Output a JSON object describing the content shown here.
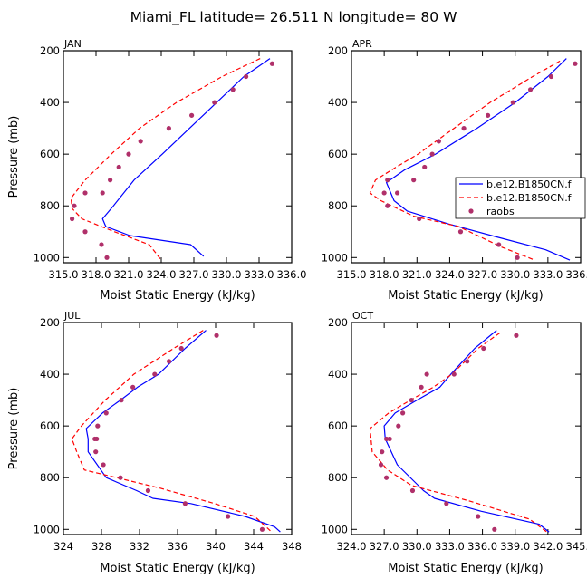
{
  "figure_title": "Miami_FL  latitude= 26.511 N longitude= 80 W",
  "chart_data": [
    {
      "type": "line",
      "title": "JAN",
      "xlabel": "Moist Static Energy (kJ/kg)",
      "ylabel": "Pressure (mb)",
      "xlim": [
        315.0,
        336.0
      ],
      "ylim": [
        200,
        1020
      ],
      "y_inverted": true,
      "xticks": [
        315,
        318,
        321,
        324,
        327,
        330,
        333,
        336
      ],
      "xtick_labels": [
        "315.0",
        "318.0",
        "321.0",
        "324.0",
        "327.0",
        "330.0",
        "333.0",
        "336.0"
      ],
      "yticks": [
        200,
        400,
        600,
        800,
        1000
      ],
      "ytick_labels": [
        "200",
        "400",
        "600",
        "800",
        "1000"
      ],
      "series": [
        {
          "name": "b.e12.B1850CN.f",
          "style": "solid",
          "color": "#0000ff",
          "x": [
            334.0,
            331.6,
            329.1,
            326.6,
            324.1,
            321.5,
            319.6,
            318.6,
            318.9,
            321.1,
            326.7,
            327.9
          ],
          "p": [
            230,
            300,
            400,
            500,
            600,
            700,
            800,
            850,
            880,
            915,
            950,
            995
          ]
        },
        {
          "name": "b.e12.B1850CN.f",
          "style": "dashed",
          "color": "#ff0000",
          "x": [
            333.1,
            329.6,
            325.4,
            322.0,
            319.4,
            317.0,
            315.7,
            315.8,
            316.7,
            319.7,
            322.9,
            324.0
          ],
          "p": [
            230,
            300,
            400,
            500,
            600,
            700,
            770,
            810,
            850,
            900,
            950,
            1010
          ]
        },
        {
          "name": "raobs",
          "style": "dots",
          "color": "#b0306a",
          "x": [
            334.2,
            331.8,
            330.6,
            328.9,
            326.8,
            324.7,
            322.1,
            321.0,
            320.1,
            319.3,
            318.6,
            317.0,
            316.0,
            315.8,
            317.0,
            318.5,
            319.0
          ],
          "p": [
            250,
            300,
            350,
            400,
            450,
            500,
            550,
            600,
            650,
            700,
            750,
            750,
            800,
            850,
            900,
            950,
            1000
          ]
        }
      ]
    },
    {
      "type": "line",
      "title": "APR",
      "xlabel": "Moist Static Energy (kJ/kg)",
      "ylabel": "",
      "xlim": [
        315.0,
        336.0
      ],
      "ylim": [
        200,
        1020
      ],
      "y_inverted": true,
      "xticks": [
        315,
        318,
        321,
        324,
        327,
        330,
        333,
        336
      ],
      "xtick_labels": [
        "315.0",
        "318.0",
        "321.0",
        "324.0",
        "327.0",
        "330.0",
        "333.0",
        "336.0"
      ],
      "yticks": [
        200,
        400,
        600,
        800,
        1000
      ],
      "ytick_labels": [
        "200",
        "400",
        "600",
        "800",
        "1000"
      ],
      "series": [
        {
          "name": "b.e12.B1850CN.f",
          "style": "solid",
          "color": "#0000ff",
          "x": [
            334.7,
            333.0,
            330.0,
            326.5,
            322.7,
            319.9,
            318.2,
            318.9,
            320.1,
            323.9,
            328.3,
            332.8,
            335.0
          ],
          "p": [
            230,
            300,
            400,
            500,
            600,
            660,
            710,
            780,
            820,
            870,
            920,
            970,
            1010
          ]
        },
        {
          "name": "b.e12.B1850CN.f",
          "style": "dashed",
          "color": "#ff0000",
          "x": [
            334.1,
            331.6,
            327.7,
            324.4,
            321.1,
            319.1,
            317.2,
            316.7,
            317.7,
            320.7,
            324.8,
            328.8,
            331.8
          ],
          "p": [
            240,
            300,
            400,
            500,
            600,
            650,
            700,
            750,
            780,
            840,
            880,
            960,
            1010
          ]
        },
        {
          "name": "raobs",
          "style": "dots",
          "color": "#b0306a",
          "x": [
            335.5,
            333.3,
            331.4,
            329.8,
            327.5,
            325.3,
            323.0,
            322.4,
            321.7,
            320.7,
            319.2,
            318.3,
            318.0,
            318.3,
            321.2,
            325.0,
            328.5,
            330.2
          ],
          "p": [
            250,
            300,
            350,
            400,
            450,
            500,
            550,
            600,
            650,
            700,
            750,
            700,
            750,
            800,
            850,
            900,
            950,
            1000
          ]
        }
      ]
    },
    {
      "type": "line",
      "title": "JUL",
      "xlabel": "Moist Static Energy (kJ/kg)",
      "ylabel": "Pressure (mb)",
      "xlim": [
        324,
        348
      ],
      "ylim": [
        200,
        1020
      ],
      "y_inverted": true,
      "xticks": [
        324,
        328,
        332,
        336,
        340,
        344,
        348
      ],
      "xtick_labels": [
        "324",
        "328",
        "332",
        "336",
        "340",
        "344",
        "348"
      ],
      "yticks": [
        200,
        400,
        600,
        800,
        1000
      ],
      "ytick_labels": [
        "200",
        "400",
        "600",
        "800",
        "1000"
      ],
      "series": [
        {
          "name": "b.e12.B1850CN.f",
          "style": "solid",
          "color": "#0000ff",
          "x": [
            339.0,
            336.8,
            334.0,
            331.8,
            330.0,
            328.1,
            326.4,
            326.6,
            326.6,
            328.5,
            331.7,
            333.4,
            337.4,
            343.1,
            346.2,
            346.8
          ],
          "p": [
            230,
            300,
            400,
            450,
            500,
            550,
            610,
            650,
            700,
            800,
            850,
            880,
            900,
            950,
            990,
            1010
          ]
        },
        {
          "name": "b.e12.B1850CN.f",
          "style": "dashed",
          "color": "#ff0000",
          "x": [
            338.7,
            335.6,
            331.4,
            328.4,
            325.9,
            324.9,
            325.4,
            326.2,
            329.6,
            334.1,
            339.9,
            344.1,
            345.9
          ],
          "p": [
            230,
            300,
            400,
            500,
            600,
            650,
            700,
            770,
            800,
            840,
            900,
            950,
            1010
          ]
        },
        {
          "name": "raobs",
          "style": "dots",
          "color": "#b0306a",
          "x": [
            340.1,
            336.4,
            335.1,
            333.6,
            331.3,
            330.1,
            328.5,
            327.6,
            327.3,
            327.4,
            327.5,
            328.2,
            330.0,
            332.9,
            336.8,
            341.3,
            344.9
          ],
          "p": [
            250,
            300,
            350,
            400,
            450,
            500,
            550,
            600,
            650,
            700,
            650,
            750,
            800,
            850,
            900,
            950,
            1000
          ]
        }
      ]
    },
    {
      "type": "line",
      "title": "OCT",
      "xlabel": "Moist Static Energy (kJ/kg)",
      "ylabel": "",
      "xlim": [
        324.0,
        345.0
      ],
      "ylim": [
        200,
        1020
      ],
      "y_inverted": true,
      "xticks": [
        324,
        327,
        330,
        333,
        336,
        339,
        342,
        345
      ],
      "xtick_labels": [
        "324.0",
        "327.0",
        "330.0",
        "333.0",
        "336.0",
        "339.0",
        "342.0",
        "345.0"
      ],
      "yticks": [
        200,
        400,
        600,
        800,
        1000
      ],
      "ytick_labels": [
        "200",
        "400",
        "600",
        "800",
        "1000"
      ],
      "series": [
        {
          "name": "b.e12.B1850CN.f",
          "style": "solid",
          "color": "#0000ff",
          "x": [
            337.3,
            335.3,
            333.1,
            332.1,
            330.0,
            328.0,
            327.0,
            327.1,
            328.2,
            330.6,
            331.6,
            335.9,
            341.2,
            342.1
          ],
          "p": [
            230,
            300,
            400,
            450,
            500,
            550,
            600,
            650,
            750,
            850,
            880,
            930,
            980,
            1010
          ]
        },
        {
          "name": "b.e12.B1850CN.f",
          "style": "dashed",
          "color": "#ff0000",
          "x": [
            337.6,
            335.6,
            333.2,
            331.5,
            329.4,
            327.4,
            325.7,
            325.9,
            327.3,
            329.5,
            334.8,
            340.3,
            341.9
          ],
          "p": [
            240,
            300,
            400,
            450,
            500,
            550,
            610,
            700,
            770,
            830,
            890,
            960,
            1010
          ]
        },
        {
          "name": "raobs",
          "style": "dots",
          "color": "#b0306a",
          "x": [
            339.1,
            336.1,
            334.6,
            333.4,
            330.9,
            330.4,
            329.5,
            328.7,
            328.3,
            327.5,
            327.2,
            326.8,
            326.7,
            327.2,
            329.6,
            332.7,
            335.6,
            337.1
          ],
          "p": [
            250,
            300,
            350,
            400,
            400,
            450,
            500,
            550,
            600,
            650,
            650,
            700,
            750,
            800,
            850,
            900,
            950,
            1000
          ]
        }
      ]
    }
  ],
  "legend": {
    "placement": "right of APR panel",
    "entries": [
      {
        "label": "b.e12.B1850CN.f",
        "style": "solid",
        "color": "#0000ff"
      },
      {
        "label": "b.e12.B1850CN.f",
        "style": "dashed",
        "color": "#ff0000"
      },
      {
        "label": "raobs",
        "style": "dots",
        "color": "#b0306a"
      }
    ]
  }
}
